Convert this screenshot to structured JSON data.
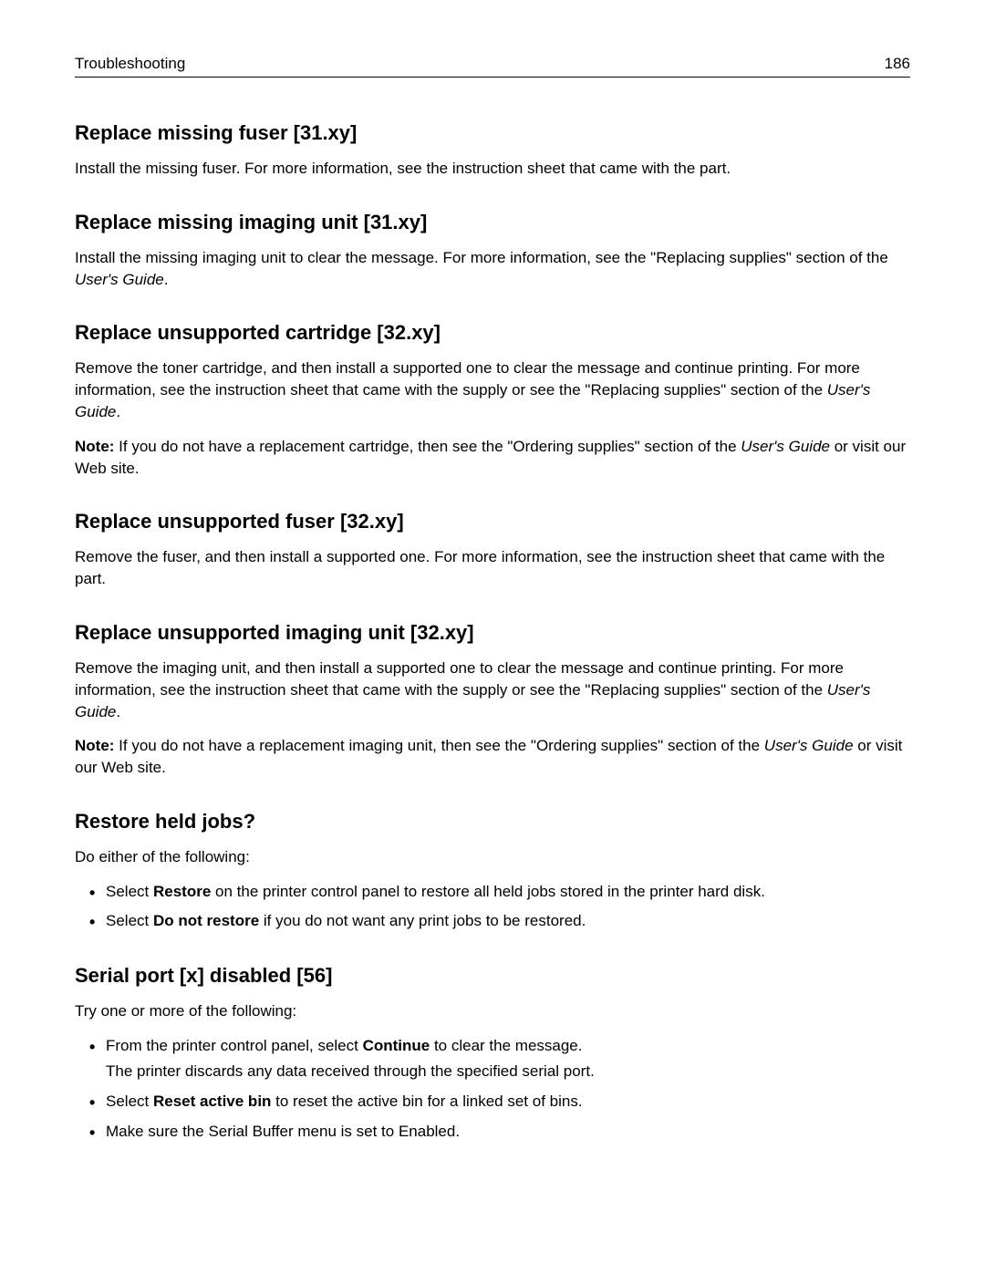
{
  "header": {
    "title": "Troubleshooting",
    "page_number": "186"
  },
  "sections": {
    "s1": {
      "heading": "Replace missing fuser [31.xy]",
      "p1": "Install the missing fuser. For more information, see the instruction sheet that came with the part."
    },
    "s2": {
      "heading": "Replace missing imaging unit [31.xy]",
      "p1_a": "Install the missing imaging unit to clear the message. For more information, see the \"Replacing supplies\" section of the ",
      "p1_italic": "User's Guide",
      "p1_b": "."
    },
    "s3": {
      "heading": "Replace unsupported cartridge [32.xy]",
      "p1_a": "Remove the toner cartridge, and then install a supported one to clear the message and continue printing. For more information, see the instruction sheet that came with the supply or see the \"Replacing supplies\" section of the ",
      "p1_italic": "User's Guide",
      "p1_b": ".",
      "p2_bold": "Note:",
      "p2_a": " If you do not have a replacement cartridge, then see the \"Ordering supplies\" section of the ",
      "p2_italic": "User's Guide",
      "p2_b": " or visit our Web site."
    },
    "s4": {
      "heading": "Replace unsupported fuser [32.xy]",
      "p1": "Remove the fuser, and then install a supported one. For more information, see the instruction sheet that came with the part."
    },
    "s5": {
      "heading": "Replace unsupported imaging unit [32.xy]",
      "p1_a": "Remove the imaging unit, and then install a supported one to clear the message and continue printing. For more information, see the instruction sheet that came with the supply or see the \"Replacing supplies\" section of the ",
      "p1_italic": "User's Guide",
      "p1_b": ".",
      "p2_bold": "Note:",
      "p2_a": " If you do not have a replacement imaging unit, then see the \"Ordering supplies\" section of the ",
      "p2_italic": "User's Guide",
      "p2_b": " or visit our Web site."
    },
    "s6": {
      "heading": "Restore held jobs?",
      "p1": "Do either of the following:",
      "li1_a": "Select ",
      "li1_bold": "Restore",
      "li1_b": " on the printer control panel to restore all held jobs stored in the printer hard disk.",
      "li2_a": "Select ",
      "li2_bold": "Do not restore",
      "li2_b": " if you do not want any print jobs to be restored."
    },
    "s7": {
      "heading": "Serial port [x] disabled [56]",
      "p1": "Try one or more of the following:",
      "li1_a": "From the printer control panel, select ",
      "li1_bold": "Continue",
      "li1_b": " to clear the message.",
      "li1_sub": "The printer discards any data received through the specified serial port.",
      "li2_a": "Select ",
      "li2_bold": "Reset active bin",
      "li2_b": " to reset the active bin for a linked set of bins.",
      "li3": "Make sure the Serial Buffer menu is set to Enabled."
    }
  }
}
